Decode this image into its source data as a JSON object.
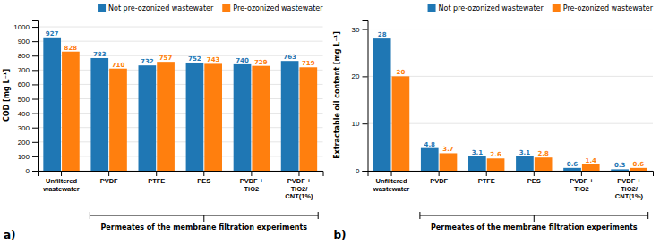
{
  "chart_data": [
    {
      "type": "bar",
      "categories": [
        "Unfiltered\nwastewater",
        "PVDF",
        "PTFE",
        "PES",
        "PVDF +\nTiO2",
        "PVDF +\nTiO2/\nCNT(1%)"
      ],
      "series": [
        {
          "name": "Not pre-ozonized wastewater",
          "values": [
            927,
            783,
            732,
            752,
            740,
            763
          ]
        },
        {
          "name": "Pre-ozonized wastewater",
          "values": [
            828,
            710,
            757,
            743,
            729,
            719
          ]
        }
      ],
      "ylabel": "COD [mg L⁻¹]",
      "ylim": [
        0,
        1050
      ],
      "yticks": [
        0,
        100,
        200,
        300,
        400,
        500,
        600,
        700,
        800,
        900,
        1000
      ],
      "grid": true,
      "legend": "upper right",
      "data_labels": true,
      "annotations": [
        "a)",
        "Permeates of the membrane filtration experiments"
      ]
    },
    {
      "type": "bar",
      "categories": [
        "Unfiltered\nwastewater",
        "PVDF",
        "PTFE",
        "PES",
        "PVDF +\nTiO2",
        "PVDF +\nTiO2/\nCNT(1%)"
      ],
      "series": [
        {
          "name": "Not pre-ozonized wastewater",
          "values": [
            28,
            4.8,
            3.1,
            3.1,
            0.6,
            0.3
          ]
        },
        {
          "name": "Pre-ozonized wastewater",
          "values": [
            20,
            3.7,
            2.6,
            2.8,
            1.4,
            0.6
          ]
        }
      ],
      "ylabel": "Extractable oil content [mg L⁻¹]",
      "ylim": [
        0,
        32
      ],
      "yticks": [
        0,
        10,
        20,
        30
      ],
      "grid": true,
      "legend": "upper right",
      "data_labels": true,
      "annotations": [
        "b)",
        "Permeates of the membrane filtration experiments"
      ]
    }
  ]
}
